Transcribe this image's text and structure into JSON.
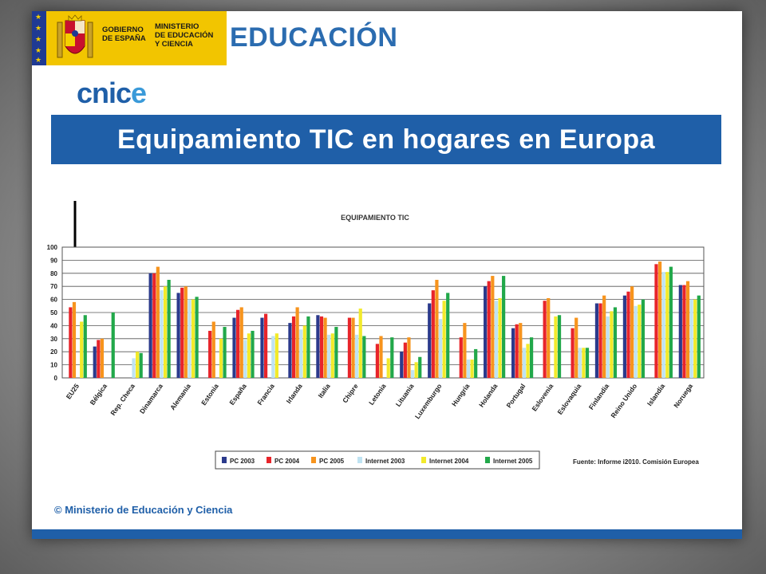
{
  "header": {
    "government_lines": [
      "GOBIERNO",
      "DE ESPAÑA"
    ],
    "ministry_lines": [
      "MINISTERIO",
      "DE EDUCACIÓN",
      "Y CIENCIA"
    ],
    "banner_word": "EDUCACIÓN",
    "cnice_main": "cnic",
    "cnice_end": "e"
  },
  "slide_title": "Equipamiento TIC en hogares en Europa",
  "footer": {
    "copyright": "© Ministerio de Educación y Ciencia"
  },
  "source_note": "Fuente: Informe i2010. Comisión Europea",
  "colors": {
    "brand_blue": "#1f5fa8",
    "yellow_logo": "#f2c500",
    "series": [
      "#2b3a8c",
      "#e8242a",
      "#f7941d",
      "#bfe3f2",
      "#f2ea2b",
      "#22a84a"
    ]
  },
  "chart_data": {
    "type": "bar",
    "title": "EQUIPAMIENTO TIC",
    "ylim": [
      0,
      100
    ],
    "yticks": [
      0,
      10,
      20,
      30,
      40,
      50,
      60,
      70,
      80,
      90,
      100
    ],
    "grid": true,
    "legend_position": "bottom",
    "categories": [
      "EU25",
      "Bélgica",
      "Rep. Checa",
      "Dinamarca",
      "Alemania",
      "Estonia",
      "España",
      "Francia",
      "Irlanda",
      "Italia",
      "Chipre",
      "Letonia",
      "Lituania",
      "Luxemburgo",
      "Hungría",
      "Holanda",
      "Portugal",
      "Eslovenia",
      "Eslovaquia",
      "Finlandia",
      "Reino Unido",
      "Islandia",
      "Noruega"
    ],
    "series": [
      {
        "name": "PC 2003",
        "values": [
          null,
          24,
          null,
          80,
          65,
          null,
          46,
          46,
          42,
          48,
          null,
          null,
          20,
          57,
          null,
          70,
          38,
          null,
          null,
          57,
          63,
          null,
          71
        ]
      },
      {
        "name": "PC 2004",
        "values": [
          54,
          29,
          null,
          80,
          69,
          36,
          52,
          49,
          47,
          47,
          46,
          26,
          27,
          67,
          31,
          74,
          41,
          59,
          38,
          57,
          66,
          87,
          71
        ]
      },
      {
        "name": "PC 2005",
        "values": [
          58,
          30,
          null,
          85,
          70,
          43,
          54,
          null,
          54,
          46,
          46,
          32,
          31,
          75,
          42,
          78,
          42,
          61,
          46,
          63,
          70,
          89,
          74
        ]
      },
      {
        "name": "Internet 2003",
        "values": [
          null,
          null,
          15,
          67,
          60,
          null,
          29,
          32,
          37,
          33,
          33,
          null,
          6,
          45,
          14,
          59,
          23,
          null,
          23,
          47,
          55,
          81,
          60
        ]
      },
      {
        "name": "Internet 2004",
        "values": [
          43,
          null,
          20,
          70,
          60,
          30,
          34,
          34,
          40,
          34,
          53,
          15,
          12,
          59,
          14,
          61,
          26,
          47,
          23,
          51,
          56,
          81,
          60
        ]
      },
      {
        "name": "Internet 2005",
        "values": [
          48,
          50,
          19,
          75,
          62,
          39,
          36,
          null,
          47,
          39,
          32,
          31,
          16,
          65,
          22,
          78,
          31,
          48,
          23,
          54,
          60,
          85,
          63
        ]
      }
    ]
  }
}
